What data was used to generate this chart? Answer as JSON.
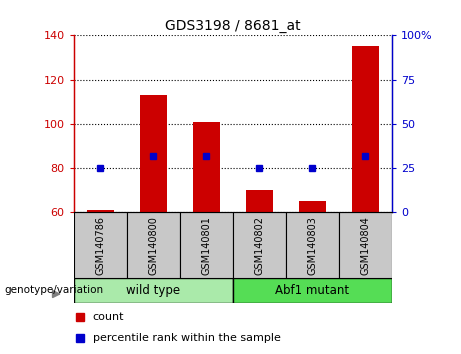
{
  "title": "GDS3198 / 8681_at",
  "samples": [
    "GSM140786",
    "GSM140800",
    "GSM140801",
    "GSM140802",
    "GSM140803",
    "GSM140804"
  ],
  "counts": [
    61,
    113,
    101,
    70,
    65,
    135
  ],
  "percentile_ranks": [
    25,
    32,
    32,
    25,
    25,
    32
  ],
  "ylim_left": [
    60,
    140
  ],
  "ylim_right": [
    0,
    100
  ],
  "yticks_left": [
    60,
    80,
    100,
    120,
    140
  ],
  "yticks_right": [
    0,
    25,
    50,
    75,
    100
  ],
  "bar_color": "#cc0000",
  "dot_color": "#0000cc",
  "left_tick_color": "#cc0000",
  "right_tick_color": "#0000cc",
  "groups": [
    {
      "label": "wild type",
      "indices": [
        0,
        1,
        2
      ],
      "color": "#aaeaaa"
    },
    {
      "label": "Abf1 mutant",
      "indices": [
        3,
        4,
        5
      ],
      "color": "#55dd55"
    }
  ],
  "group_label": "genotype/variation",
  "legend_count_label": "count",
  "legend_percentile_label": "percentile rank within the sample",
  "sample_area_color": "#c8c8c8",
  "bar_width": 0.5
}
